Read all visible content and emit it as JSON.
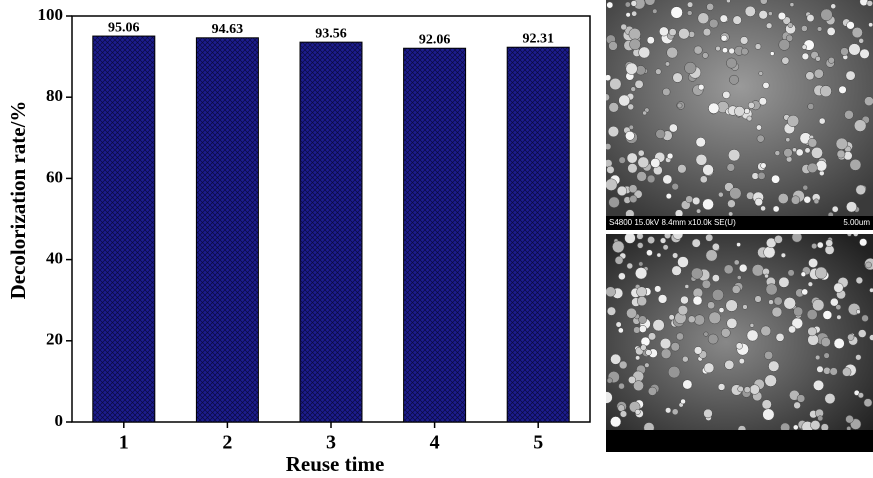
{
  "chart_data": {
    "type": "bar",
    "x_label": "Reuse time",
    "y_label": "Decolorization rate/%",
    "categories": [
      "1",
      "2",
      "3",
      "4",
      "5"
    ],
    "values": [
      95.06,
      94.63,
      93.56,
      92.06,
      92.31
    ],
    "color": "#1c1c8e",
    "ylim": [
      0,
      100
    ],
    "yticks": [
      0,
      20,
      40,
      60,
      80,
      100
    ]
  },
  "images": [
    {
      "caption": "S4800 15.0kV 8.4mm x10.0k SE(U)",
      "scale": "5.00um"
    }
  ]
}
